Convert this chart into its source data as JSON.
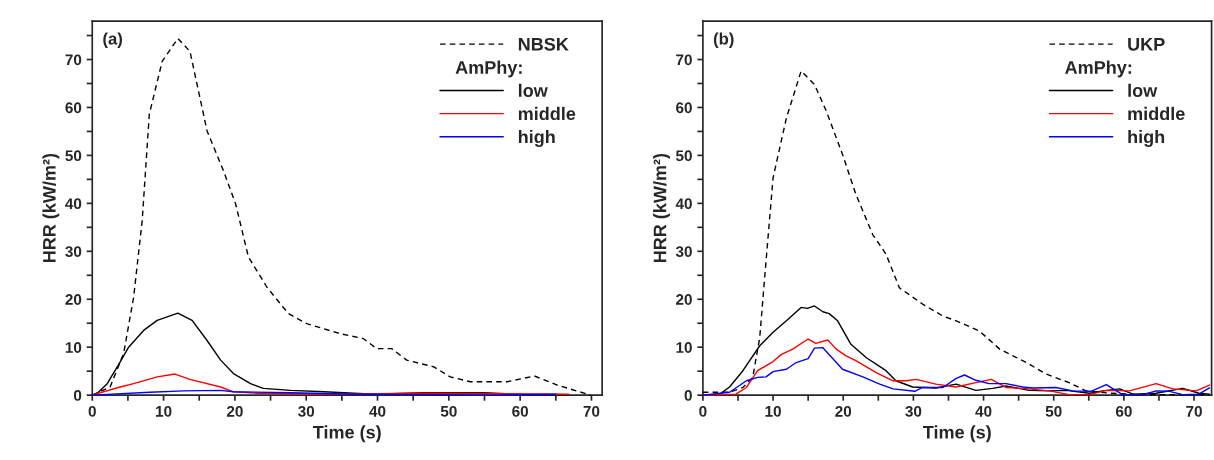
{
  "chart_data": [
    {
      "type": "line",
      "title": "(a)",
      "xlabel": "Time (s)",
      "ylabel": "HRR (kW/m²)",
      "legend_title": "AmPhy:",
      "legend": "top right",
      "grid": false,
      "marker": "none",
      "xlim": [
        0,
        71.5
      ],
      "ylim": [
        0,
        78
      ],
      "xticks": [
        0,
        {
          "value": 5,
          "label": null
        },
        10,
        {
          "value": 15,
          "label": null
        },
        20,
        {
          "value": 25,
          "label": null
        },
        30,
        {
          "value": 35,
          "label": null
        },
        40,
        {
          "value": 45,
          "label": null
        },
        50,
        {
          "value": 55,
          "label": null
        },
        60,
        {
          "value": 65,
          "label": null
        },
        70
      ],
      "yticks": [
        0,
        {
          "value": 5,
          "label": null
        },
        10,
        {
          "value": 15,
          "label": null
        },
        20,
        {
          "value": 25,
          "label": null
        },
        30,
        {
          "value": 35,
          "label": null
        },
        40,
        {
          "value": 45,
          "label": null
        },
        50,
        {
          "value": 55,
          "label": null
        },
        60,
        {
          "value": 65,
          "label": null
        },
        70,
        {
          "value": 75,
          "label": null
        }
      ],
      "series": [
        {
          "name": "NBSK",
          "color": "#000000",
          "line_style": "dashed",
          "x": [
            0,
            2.5,
            4.4,
            5.8,
            7,
            8,
            9.8,
            12,
            13.7,
            16.1,
            18.4,
            20.1,
            21.9,
            24.5,
            27.5,
            30.1,
            34.8,
            38,
            39.9,
            42,
            44.1,
            47.9,
            50.2,
            53,
            58.2,
            62,
            65.2,
            69.9
          ],
          "values": [
            0,
            1.7,
            8.7,
            20.4,
            36.4,
            58.6,
            69.6,
            74.4,
            71.7,
            55.1,
            46.8,
            39.9,
            28.8,
            22.5,
            17,
            14.9,
            12.8,
            11.8,
            9.7,
            9.7,
            7.3,
            5.9,
            3.8,
            2.8,
            2.8,
            4,
            2.1,
            0
          ]
        },
        {
          "name": "low",
          "color": "#000000",
          "line_style": "solid",
          "x": [
            0,
            0.7,
            2.1,
            3.9,
            5.1,
            7.2,
            9.1,
            12,
            14,
            16.1,
            18,
            19.8,
            22.2,
            24,
            27.8,
            32.5,
            39.5,
            46.5,
            54.9,
            60.5,
            66.6
          ],
          "values": [
            0,
            0.4,
            2.4,
            6.9,
            10,
            13.5,
            15.6,
            17.1,
            15.6,
            11.4,
            7.3,
            4.5,
            2.4,
            1.4,
            1,
            0.7,
            0.2,
            0.5,
            0.5,
            0.1,
            0.1
          ]
        },
        {
          "name": "middle",
          "color": "#ff0000",
          "line_style": "solid",
          "x": [
            0,
            3.9,
            5.8,
            9.1,
            11.6,
            13.7,
            18,
            19.8,
            23.1,
            32.5,
            46.5,
            66.8
          ],
          "values": [
            0,
            1.7,
            2.4,
            3.8,
            4.4,
            3.3,
            1.7,
            0.7,
            0.4,
            0.2,
            0.4,
            0.2
          ]
        },
        {
          "name": "high",
          "color": "#0000ff",
          "line_style": "solid",
          "x": [
            0,
            8.1,
            12.8,
            18,
            19.8,
            27.8,
            37.1,
            57,
            65
          ],
          "values": [
            0,
            0.6,
            0.9,
            1,
            0.7,
            0.5,
            0.2,
            0,
            0.2
          ]
        }
      ]
    },
    {
      "type": "line",
      "title": "(b)",
      "xlabel": "Time (s)",
      "ylabel": "HRR (kW/m²)",
      "legend_title": "AmPhy:",
      "legend": "top right",
      "grid": false,
      "marker": "none",
      "xlim": [
        0,
        72.5
      ],
      "ylim": [
        0,
        78
      ],
      "xticks": [
        0,
        {
          "value": 5,
          "label": null
        },
        10,
        {
          "value": 15,
          "label": null
        },
        20,
        {
          "value": 25,
          "label": null
        },
        30,
        {
          "value": 35,
          "label": null
        },
        40,
        {
          "value": 45,
          "label": null
        },
        50,
        {
          "value": 55,
          "label": null
        },
        60,
        {
          "value": 65,
          "label": null
        },
        70
      ],
      "yticks": [
        0,
        {
          "value": 5,
          "label": null
        },
        10,
        {
          "value": 15,
          "label": null
        },
        20,
        {
          "value": 25,
          "label": null
        },
        30,
        {
          "value": 35,
          "label": null
        },
        40,
        {
          "value": 45,
          "label": null
        },
        50,
        {
          "value": 55,
          "label": null
        },
        60,
        {
          "value": 65,
          "label": null
        },
        70,
        {
          "value": 75,
          "label": null
        }
      ],
      "series": [
        {
          "name": "UKP",
          "color": "#000000",
          "line_style": "dashed",
          "x": [
            0,
            1.9,
            3.8,
            5.7,
            7.1,
            8.1,
            9,
            10,
            11.9,
            14,
            15.9,
            17.6,
            19.9,
            21.8,
            24.2,
            26.1,
            28,
            31.3,
            34.2,
            36.1,
            39.4,
            42.3,
            46.1,
            48.9,
            52.2,
            54.6,
            58,
            62.7,
            72.2
          ],
          "values": [
            0.6,
            0.6,
            0.6,
            1.6,
            3.7,
            12,
            28,
            45.3,
            57.8,
            67.6,
            64.8,
            59.2,
            50.2,
            41.9,
            33.5,
            29.4,
            22.4,
            19,
            16.5,
            15.5,
            13.4,
            9.6,
            6.8,
            4.4,
            2.6,
            0.9,
            0.4,
            0.1,
            0.1
          ]
        },
        {
          "name": "low",
          "color": "#000000",
          "line_style": "solid",
          "x": [
            0,
            2.4,
            3.8,
            5.7,
            8.1,
            10,
            11.9,
            14,
            14.9,
            15.9,
            17.1,
            18,
            19.2,
            21.1,
            23.3,
            26.1,
            27.5,
            29.9,
            33.2,
            36.1,
            38.9,
            41.3,
            43.2,
            46.5,
            49.4,
            51.8,
            55.1,
            57,
            59.4,
            61.3,
            64.6,
            68.4,
            70.7,
            72.2
          ],
          "values": [
            0,
            0.2,
            1.7,
            5.1,
            10.3,
            13.1,
            15.5,
            18.3,
            18.1,
            18.6,
            17.4,
            17,
            15.5,
            10.6,
            7.8,
            5.1,
            3,
            1.7,
            1.5,
            2.3,
            1,
            1.4,
            1.9,
            1,
            0.9,
            1,
            0.4,
            0.9,
            1.3,
            0.2,
            0.4,
            1.4,
            0.4,
            0.2
          ]
        },
        {
          "name": "middle",
          "color": "#ff0000",
          "line_style": "solid",
          "x": [
            0,
            4.7,
            6.2,
            7.8,
            10,
            11.2,
            12.8,
            15,
            16.1,
            17.8,
            19,
            20.4,
            21.8,
            24.7,
            27.1,
            29,
            30.4,
            33.2,
            36.1,
            38.9,
            41.1,
            43.2,
            45.6,
            49.4,
            52.2,
            55.1,
            57.5,
            60.8,
            64.6,
            67,
            70.3,
            72.2
          ],
          "values": [
            0,
            0.2,
            1.6,
            5.1,
            7,
            8.5,
            9.6,
            11.7,
            10.8,
            11.5,
            9.6,
            8.2,
            7.2,
            4.7,
            3,
            3,
            3.3,
            2.3,
            1.7,
            2.6,
            3.3,
            1.6,
            1.4,
            0.9,
            0.1,
            0.1,
            1,
            0.9,
            2.4,
            1.3,
            0.9,
            2.1
          ]
        },
        {
          "name": "high",
          "color": "#0000ff",
          "line_style": "solid",
          "x": [
            0,
            3.8,
            6.2,
            7.8,
            9,
            10,
            11.9,
            13.3,
            15,
            15.9,
            17.1,
            19.9,
            22.8,
            25.2,
            27.1,
            30.2,
            31.3,
            34.2,
            36.1,
            37.3,
            38.9,
            40.8,
            43.2,
            45.6,
            47,
            50.3,
            52.7,
            55.3,
            57.5,
            59.8,
            62.7,
            64.6,
            66.5,
            68.4,
            70.7,
            72.2
          ],
          "values": [
            0,
            0.6,
            3,
            3.7,
            3.8,
            4.9,
            5.4,
            6.8,
            7.6,
            9.8,
            9.9,
            5.4,
            3.8,
            2.3,
            1.3,
            0.8,
            1.6,
            1.6,
            3.5,
            4.2,
            3.1,
            2.4,
            2.4,
            1.7,
            1.5,
            1.6,
            0.9,
            0.8,
            2.2,
            0.1,
            0.1,
            0.9,
            0.8,
            0.1,
            0.2,
            1.5
          ]
        }
      ]
    }
  ]
}
